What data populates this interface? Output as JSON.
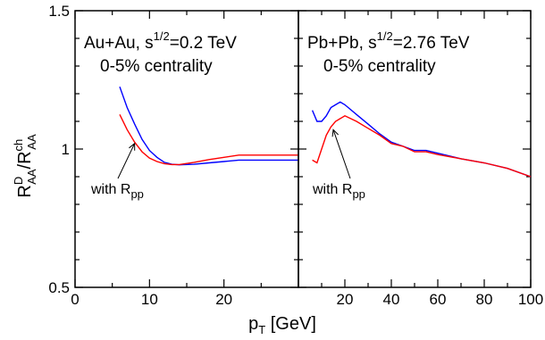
{
  "chart_data": {
    "type": "line",
    "xlabel": "p",
    "xlabel_sub": "T",
    "xlabel_unit": " [GeV]",
    "ylabel_parts": {
      "base": "R",
      "sup1": "D",
      "sub1": "AA",
      "slash": "/R",
      "sup2": "ch",
      "sub2": "AA"
    },
    "ylim": [
      0.5,
      1.5
    ],
    "y_ticks": [
      0.5,
      1,
      1.5
    ],
    "y_tick_labels": [
      "0.5",
      "1",
      "1.5"
    ],
    "colors": {
      "series_blue": "#0000ff",
      "series_red": "#ff0000",
      "axes": "#000000"
    },
    "panels": [
      {
        "title_line1_pre": "Au+Au, s",
        "title_sup": "1/2",
        "title_line1_post": "=0.2 TeV",
        "title_line2": "0-5% centrality",
        "annotation": {
          "text": "with R",
          "sub": "pp",
          "arrow_to": [
            8,
            1.02
          ]
        },
        "xlim": [
          0,
          30
        ],
        "x_ticks": [
          0,
          10,
          20
        ],
        "x_tick_labels": [
          "0",
          "10",
          "20"
        ],
        "series": [
          {
            "color": "blue",
            "x": [
              6,
              7,
              8,
              9,
              10,
              11,
              12,
              13,
              14,
              16,
              18,
              20,
              22,
              24,
              26,
              28,
              30
            ],
            "y": [
              1.225,
              1.15,
              1.09,
              1.035,
              0.995,
              0.97,
              0.952,
              0.945,
              0.943,
              0.945,
              0.95,
              0.955,
              0.96,
              0.96,
              0.96,
              0.96,
              0.96
            ]
          },
          {
            "color": "red",
            "x": [
              6,
              7,
              8,
              9,
              10,
              11,
              12,
              13,
              14,
              16,
              18,
              20,
              22,
              24,
              26,
              28,
              30
            ],
            "y": [
              1.125,
              1.07,
              1.025,
              0.99,
              0.967,
              0.955,
              0.947,
              0.944,
              0.944,
              0.952,
              0.962,
              0.97,
              0.978,
              0.978,
              0.978,
              0.978,
              0.978
            ]
          }
        ]
      },
      {
        "title_line1_pre": "Pb+Pb, s",
        "title_sup": "1/2",
        "title_line1_post": "=2.76 TeV",
        "title_line2": "0-5% centrality",
        "annotation": {
          "text": "with R",
          "sub": "pp",
          "arrow_to": [
            15,
            1.07
          ]
        },
        "xlim": [
          0,
          100
        ],
        "x_ticks": [
          0,
          20,
          40,
          60,
          80,
          100
        ],
        "x_tick_labels": [
          "",
          "20",
          "40",
          "60",
          "80",
          "100"
        ],
        "series": [
          {
            "color": "blue",
            "x": [
              6,
              8,
              10,
              12,
              14,
              16,
              18,
              20,
              25,
              30,
              35,
              40,
              45,
              50,
              55,
              60,
              70,
              80,
              90,
              100
            ],
            "y": [
              1.14,
              1.1,
              1.1,
              1.12,
              1.15,
              1.16,
              1.17,
              1.16,
              1.125,
              1.09,
              1.055,
              1.025,
              1.01,
              0.995,
              0.995,
              0.985,
              0.965,
              0.95,
              0.93,
              0.9
            ]
          },
          {
            "color": "red",
            "x": [
              6,
              8,
              10,
              12,
              14,
              16,
              18,
              20,
              25,
              30,
              35,
              40,
              45,
              50,
              55,
              60,
              70,
              80,
              90,
              100
            ],
            "y": [
              0.96,
              0.95,
              1.0,
              1.05,
              1.08,
              1.1,
              1.11,
              1.12,
              1.1,
              1.075,
              1.05,
              1.02,
              1.01,
              0.99,
              0.99,
              0.98,
              0.965,
              0.95,
              0.93,
              0.9
            ]
          }
        ]
      }
    ]
  }
}
